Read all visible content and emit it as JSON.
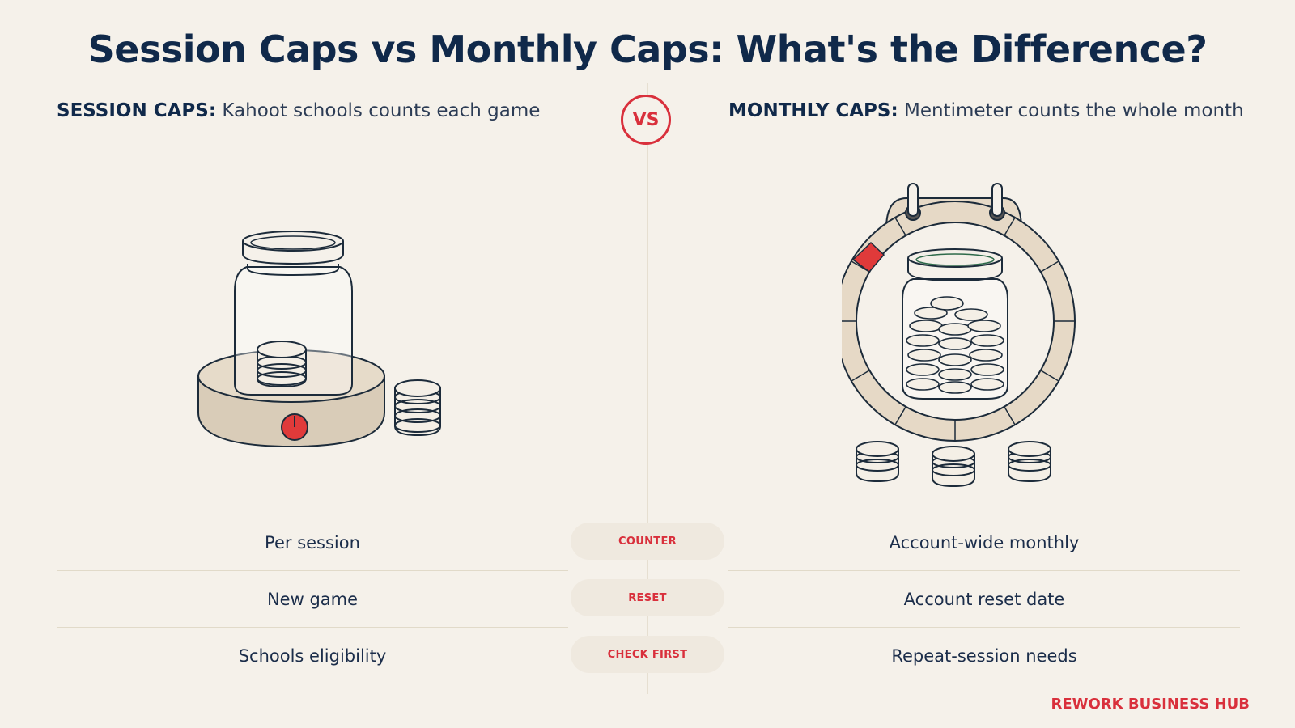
{
  "title": "Session Caps vs Monthly Caps: What's the Difference?",
  "vs_label": "VS",
  "left": {
    "heading_bold": "SESSION CAPS:",
    "heading_rest": "Kahoot schools counts each game"
  },
  "right": {
    "heading_bold": "MONTHLY CAPS:",
    "heading_rest": "Mentimeter counts the whole month"
  },
  "rows": [
    {
      "left": "Per session",
      "label": "COUNTER",
      "right": "Account-wide monthly"
    },
    {
      "left": "New game",
      "label": "RESET",
      "right": "Account reset date"
    },
    {
      "left": "Schools eligibility",
      "label": "CHECK FIRST",
      "right": "Repeat-session needs"
    }
  ],
  "brand": "REWORK BUSINESS HUB",
  "colors": {
    "background": "#f5f1ea",
    "navy": "#10294a",
    "accent_red": "#d9303c",
    "beige": "#e6d9c6"
  },
  "icons": {
    "left_illustration": "jar-with-coins-on-timer-base-icon",
    "right_illustration": "calendar-ring-with-coin-jar-icon"
  }
}
